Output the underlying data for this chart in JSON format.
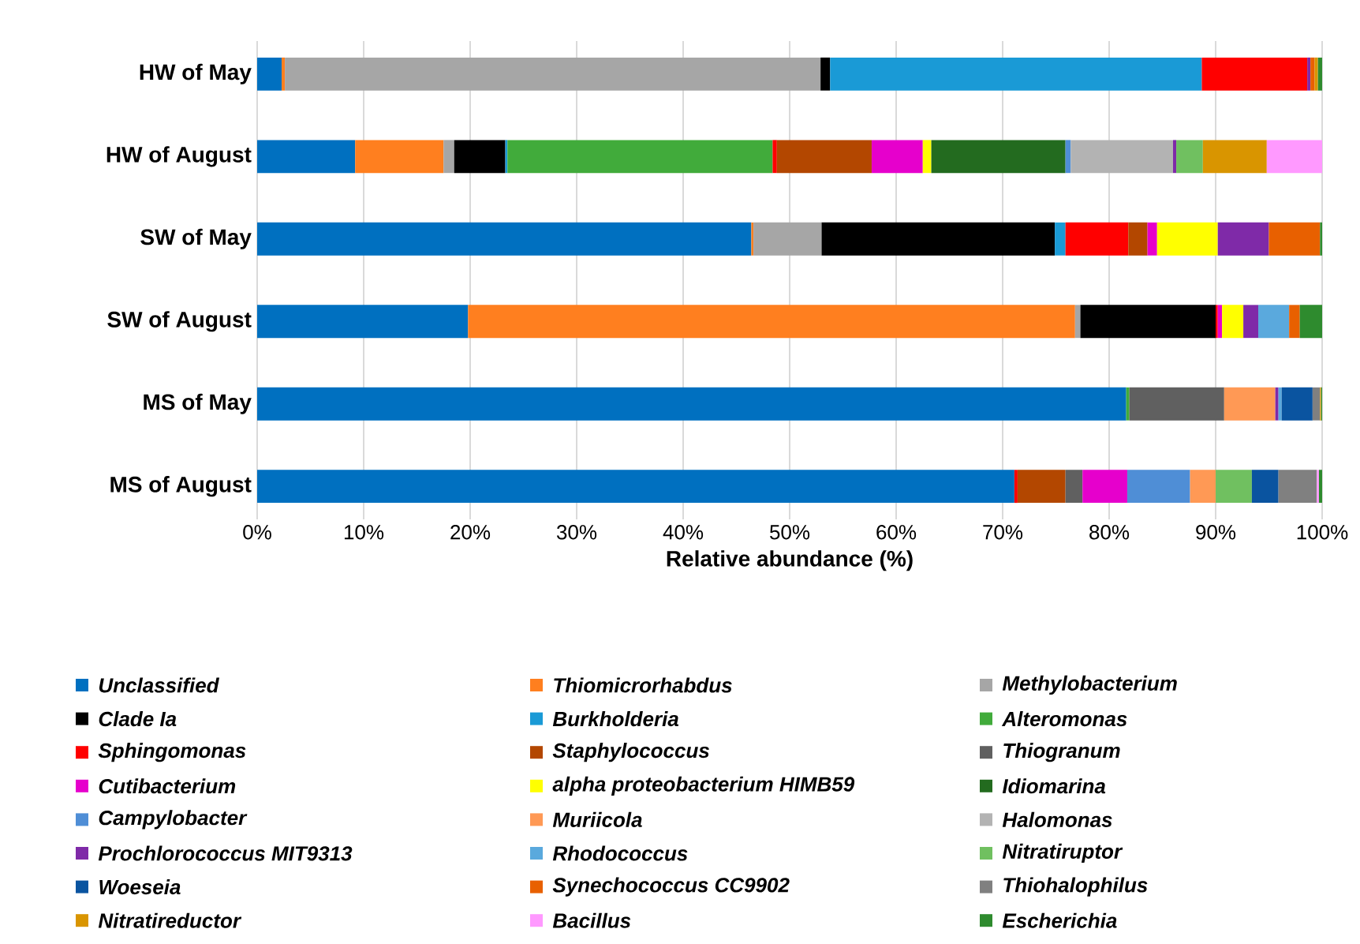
{
  "chart_data": {
    "type": "bar",
    "orientation": "horizontal",
    "stacked": true,
    "xlabel": "Relative abundance  (%)",
    "categories": [
      "HW of May",
      "HW of August",
      "SW of May",
      "SW of August",
      "MS of May",
      "MS of August"
    ],
    "xlim": [
      0,
      100
    ],
    "xticks": [
      {
        "value": 0,
        "label": "0%"
      },
      {
        "value": 10,
        "label": "10%"
      },
      {
        "value": 20,
        "label": "20%"
      },
      {
        "value": 30,
        "label": "30%"
      },
      {
        "value": 40,
        "label": "40%"
      },
      {
        "value": 50,
        "label": "50%"
      },
      {
        "value": 60,
        "label": "60%"
      },
      {
        "value": 70,
        "label": "70%"
      },
      {
        "value": 80,
        "label": "80%"
      },
      {
        "value": 90,
        "label": "90%"
      },
      {
        "value": 100,
        "label": "100%"
      }
    ],
    "grid": "x",
    "legend": "bottom",
    "series": [
      {
        "name": "Unclassified",
        "color": "#0070c0",
        "values": [
          2.3,
          9.2,
          46.4,
          19.8,
          81.6,
          71.1
        ]
      },
      {
        "name": "Thiomicrorhabdus",
        "color": "#ff7f1f",
        "values": [
          0.3,
          8.3,
          0.2,
          57.0,
          null,
          null
        ]
      },
      {
        "name": "Methylobacterium",
        "color": "#a6a6a6",
        "values": [
          50.3,
          1.0,
          6.4,
          0.5,
          null,
          null
        ]
      },
      {
        "name": "Clade Ia",
        "color": "#000000",
        "values": [
          0.9,
          4.8,
          21.9,
          12.7,
          null,
          null
        ]
      },
      {
        "name": "Burkholderia",
        "color": "#1a9ad6",
        "values": [
          34.9,
          0.2,
          1.0,
          null,
          null,
          null
        ]
      },
      {
        "name": "Alteromonas",
        "color": "#41ab3b",
        "values": [
          null,
          24.9,
          null,
          null,
          0.3,
          null
        ]
      },
      {
        "name": "Sphingomonas",
        "color": "#ff0000",
        "values": [
          9.9,
          0.4,
          5.9,
          0.2,
          null,
          0.3
        ]
      },
      {
        "name": "Staphylococcus",
        "color": "#b34700",
        "values": [
          null,
          8.9,
          1.8,
          null,
          null,
          4.5
        ]
      },
      {
        "name": "Thiogranum",
        "color": "#606060",
        "values": [
          null,
          null,
          null,
          null,
          8.9,
          1.6
        ]
      },
      {
        "name": "Cutibacterium",
        "color": "#e600cc",
        "values": [
          null,
          4.8,
          0.9,
          0.4,
          null,
          4.2
        ]
      },
      {
        "name": "alpha proteobacterium HIMB59",
        "color": "#ffff00",
        "values": [
          null,
          0.8,
          5.7,
          2.0,
          null,
          null
        ]
      },
      {
        "name": "Idiomarina",
        "color": "#236b1f",
        "values": [
          null,
          12.6,
          null,
          null,
          null,
          null
        ]
      },
      {
        "name": "Campylobacter",
        "color": "#4f8ed6",
        "values": [
          null,
          0.5,
          null,
          null,
          null,
          5.9
        ]
      },
      {
        "name": "Muriicola",
        "color": "#ff9955",
        "values": [
          null,
          null,
          null,
          null,
          4.8,
          2.4
        ]
      },
      {
        "name": "Halomonas",
        "color": "#b3b3b3",
        "values": [
          null,
          9.6,
          null,
          null,
          null,
          null
        ]
      },
      {
        "name": "Prochlorococcus MIT9313",
        "color": "#7f2aa8",
        "values": [
          0.3,
          0.3,
          4.8,
          1.4,
          0.3,
          null
        ]
      },
      {
        "name": "Rhodococcus",
        "color": "#5aa9dd",
        "values": [
          null,
          null,
          null,
          2.9,
          0.3,
          null
        ]
      },
      {
        "name": "Nitratiruptor",
        "color": "#70c060",
        "values": [
          null,
          2.5,
          null,
          null,
          null,
          3.4
        ]
      },
      {
        "name": "Woeseia",
        "color": "#0a54a0",
        "values": [
          null,
          null,
          null,
          null,
          2.9,
          2.5
        ]
      },
      {
        "name": "Synechococcus CC9902",
        "color": "#e86000",
        "values": [
          0.4,
          null,
          4.8,
          1.0,
          null,
          null
        ]
      },
      {
        "name": "Thiohalophilus",
        "color": "#808080",
        "values": [
          null,
          null,
          null,
          null,
          0.7,
          3.6
        ]
      },
      {
        "name": "Nitratireductor",
        "color": "#d99500",
        "values": [
          0.3,
          6.0,
          null,
          null,
          0.1,
          null
        ]
      },
      {
        "name": "Bacillus",
        "color": "#ff99ff",
        "values": [
          null,
          5.2,
          null,
          null,
          null,
          0.2
        ]
      },
      {
        "name": "Escherichia",
        "color": "#2e8b2e",
        "values": [
          0.4,
          null,
          0.2,
          2.1,
          0.1,
          0.3
        ]
      }
    ]
  }
}
